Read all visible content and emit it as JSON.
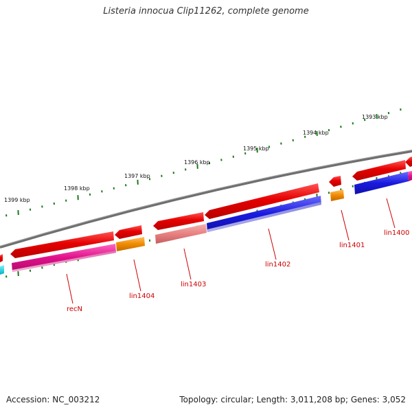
{
  "title": "Listeria innocua Clip11262, complete genome",
  "footer": {
    "accession": "Accession: NC_003212",
    "summary": "Topology: circular; Length: 3,011,208 bp; Genes: 3,052"
  },
  "ruler": {
    "labels": [
      "1393 kbp",
      "1394 kbp",
      "1395 kbp",
      "1396 kbp",
      "1397 kbp",
      "1398 kbp",
      "1399 kbp"
    ]
  },
  "gene_labels": [
    "recN",
    "lin1404",
    "lin1403",
    "lin1402",
    "lin1401",
    "lin1400"
  ],
  "colors": {
    "backbone": "#7f7f7f",
    "cds": "#e60000",
    "tick": "#1a7a1a",
    "label": "#cc0000",
    "magenta": "#e0108a",
    "orange": "#f08a00",
    "salmon": "#e88080",
    "blue": "#1a1ae0",
    "cyan": "#00d8e8"
  }
}
